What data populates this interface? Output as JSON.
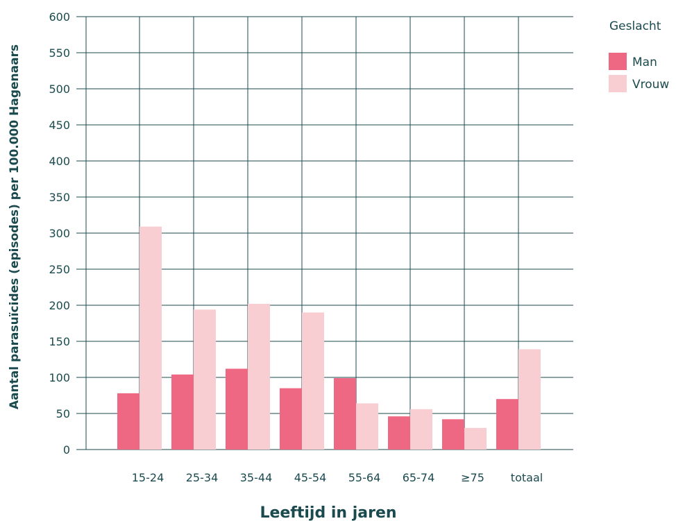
{
  "chart_data": {
    "type": "bar",
    "title": "",
    "xlabel": "Leeftijd in jaren",
    "ylabel": "Aantal parasuïcides (episodes) per 100.000 Hagenaars",
    "ylim": [
      0,
      600
    ],
    "yticks": [
      0,
      50,
      100,
      150,
      200,
      250,
      300,
      350,
      400,
      450,
      500,
      550,
      600
    ],
    "grid": true,
    "legend_title": "Geslacht",
    "legend_position": "top-right",
    "categories": [
      "15-24",
      "25-34",
      "35-44",
      "45-54",
      "55-64",
      "65-74",
      "≥75",
      "totaal"
    ],
    "series": [
      {
        "name": "Man",
        "color": "#ee6883",
        "values": [
          78,
          104,
          112,
          85,
          99,
          46,
          42,
          70
        ]
      },
      {
        "name": "Vrouw",
        "color": "#f9ced2",
        "values": [
          309,
          194,
          202,
          190,
          64,
          56,
          30,
          139
        ]
      }
    ],
    "colors": {
      "grid": "#1a4a4e",
      "text": "#1a4a4e"
    }
  }
}
